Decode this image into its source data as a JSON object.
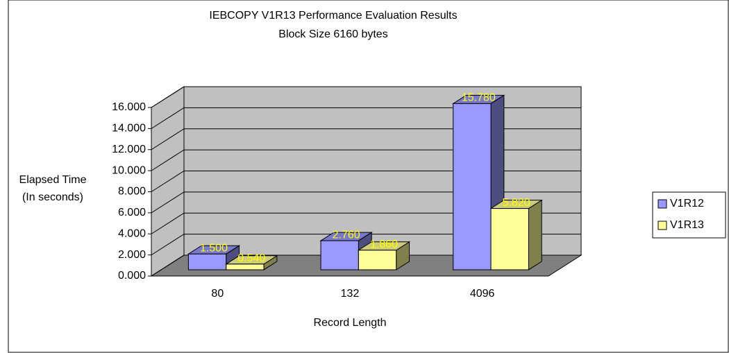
{
  "chart_data": {
    "type": "bar3d",
    "title": [
      "IEBCOPY V1R13 Performance Evaluation Results",
      "Block Size 6160 bytes"
    ],
    "ylabel": [
      "Elapsed Time",
      "(In seconds)"
    ],
    "xlabel": "Record Length",
    "categories": [
      "80",
      "132",
      "4096"
    ],
    "series": [
      {
        "name": "V1R12",
        "color": "#9999ff",
        "values": [
          1.5,
          2.76,
          15.78
        ],
        "value_labels": [
          "1.500",
          "2.760",
          "15.780"
        ]
      },
      {
        "name": "V1R13",
        "color": "#ffff99",
        "values": [
          0.54,
          1.86,
          5.82
        ],
        "value_labels": [
          "0.540",
          "1.860",
          "5.820"
        ]
      }
    ],
    "ylim": [
      0,
      16
    ],
    "yticks": [
      {
        "value": 0,
        "label": "0.000"
      },
      {
        "value": 2,
        "label": "2.000"
      },
      {
        "value": 4,
        "label": "4.000"
      },
      {
        "value": 6,
        "label": "6.000"
      },
      {
        "value": 8,
        "label": "8.000"
      },
      {
        "value": 10,
        "label": "10.000"
      },
      {
        "value": 12,
        "label": "12.000"
      },
      {
        "value": 14,
        "label": "14.000"
      },
      {
        "value": 16,
        "label": "16.000"
      }
    ],
    "grid": true,
    "legend": "right"
  }
}
